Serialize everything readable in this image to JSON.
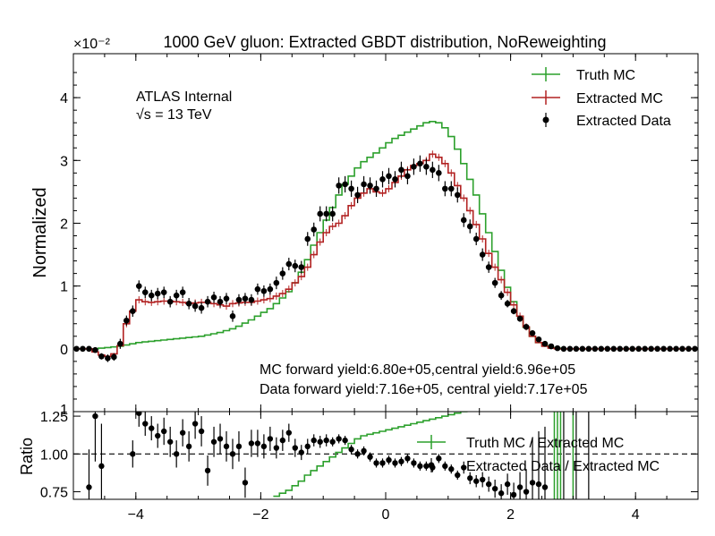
{
  "chart_data": {
    "type": "line",
    "title": "1000 GeV gluon: Extracted GBDT distribution, NoReweighting",
    "top_panel": {
      "ylabel": "Normalized",
      "scale_label": "×10⁻²",
      "ylim": [
        -1,
        4.7
      ],
      "y_ticks": [
        0,
        1,
        2,
        3,
        4
      ],
      "y_tick_labels": [
        "0",
        "1",
        "2",
        "3",
        "4"
      ],
      "bottom_clipped_label": "1",
      "annotations": {
        "experiment": "ATLAS Internal",
        "energy": "√s = 13 TeV",
        "mc_yield": "MC forward yield:6.80e+05,central yield:6.96e+05",
        "data_yield": "Data forward yield:7.16e+05, central yield:7.17e+05"
      },
      "legend": {
        "placement": "top-right",
        "entries": [
          "Truth MC",
          "Extracted MC",
          "Extracted Data"
        ]
      }
    },
    "bottom_panel": {
      "ylabel": "Ratio",
      "ylim": [
        0.7,
        1.28
      ],
      "y_ticks": [
        0.75,
        1.0,
        1.25
      ],
      "y_tick_labels": [
        "0.75",
        "1.00",
        "1.25"
      ],
      "legend": {
        "placement": "center-right",
        "entries": [
          "Truth MC / Extracted MC",
          "Extracted Data / Extracted MC"
        ]
      }
    },
    "x_axis": {
      "xlim": [
        -5,
        5
      ],
      "ticks": [
        -4,
        -2,
        0,
        2,
        4
      ],
      "tick_labels": [
        "−4",
        "−2",
        "0",
        "2",
        "4"
      ],
      "bin_width": 0.1
    },
    "x_bin_lo": [
      -5.0,
      -4.9,
      -4.8,
      -4.7,
      -4.6,
      -4.5,
      -4.4,
      -4.3,
      -4.2,
      -4.1,
      -4.0,
      -3.9,
      -3.8,
      -3.7,
      -3.6,
      -3.5,
      -3.4,
      -3.3,
      -3.2,
      -3.1,
      -3.0,
      -2.9,
      -2.8,
      -2.7,
      -2.6,
      -2.5,
      -2.4,
      -2.3,
      -2.2,
      -2.1,
      -2.0,
      -1.9,
      -1.8,
      -1.7,
      -1.6,
      -1.5,
      -1.4,
      -1.3,
      -1.2,
      -1.1,
      -1.0,
      -0.9,
      -0.8,
      -0.7,
      -0.6,
      -0.5,
      -0.4,
      -0.3,
      -0.2,
      -0.1,
      0.0,
      0.1,
      0.2,
      0.3,
      0.4,
      0.5,
      0.6,
      0.7,
      0.8,
      0.9,
      1.0,
      1.1,
      1.2,
      1.3,
      1.4,
      1.5,
      1.6,
      1.7,
      1.8,
      1.9,
      2.0,
      2.1,
      2.2,
      2.3,
      2.4,
      2.5,
      2.6,
      2.7,
      2.8,
      2.9,
      3.0,
      3.1,
      3.2,
      3.3,
      3.4,
      3.5,
      3.6,
      3.7,
      3.8,
      3.9,
      4.0,
      4.1,
      4.2,
      4.3,
      4.4,
      4.5,
      4.6,
      4.7,
      4.8,
      4.9
    ],
    "series": [
      {
        "name": "Truth MC",
        "color": "#2ca02c",
        "values": [
          0,
          0,
          0,
          0,
          0.01,
          0.02,
          0.03,
          0.04,
          0.06,
          0.08,
          0.1,
          0.11,
          0.12,
          0.13,
          0.14,
          0.15,
          0.16,
          0.17,
          0.18,
          0.19,
          0.2,
          0.22,
          0.24,
          0.26,
          0.29,
          0.32,
          0.36,
          0.41,
          0.46,
          0.52,
          0.58,
          0.64,
          0.72,
          0.81,
          0.91,
          1.05,
          1.22,
          1.42,
          1.65,
          1.85,
          2.05,
          2.25,
          2.45,
          2.62,
          2.75,
          2.88,
          2.98,
          3.05,
          3.12,
          3.2,
          3.28,
          3.35,
          3.4,
          3.45,
          3.5,
          3.55,
          3.6,
          3.62,
          3.6,
          3.52,
          3.38,
          3.18,
          2.95,
          2.7,
          2.45,
          2.15,
          1.85,
          1.55,
          1.25,
          0.98,
          0.75,
          0.52,
          0.34,
          0.2,
          0.1,
          0.05,
          0.02,
          0.01,
          0,
          0,
          0,
          0,
          0,
          0,
          0,
          0,
          0,
          0,
          0,
          0,
          0,
          0,
          0,
          0,
          0,
          0,
          0,
          0,
          0,
          0
        ]
      },
      {
        "name": "Extracted MC",
        "color": "#b22222",
        "values": [
          0,
          0,
          0,
          -0.05,
          -0.1,
          -0.12,
          -0.08,
          0.05,
          0.4,
          0.6,
          0.78,
          0.75,
          0.74,
          0.75,
          0.76,
          0.76,
          0.75,
          0.74,
          0.72,
          0.73,
          0.74,
          0.74,
          0.72,
          0.7,
          0.68,
          0.72,
          0.73,
          0.74,
          0.74,
          0.76,
          0.78,
          0.8,
          0.84,
          0.88,
          0.95,
          1.05,
          1.15,
          1.3,
          1.5,
          1.7,
          1.85,
          1.95,
          2.0,
          2.12,
          2.28,
          2.4,
          2.48,
          2.55,
          2.5,
          2.48,
          2.55,
          2.65,
          2.75,
          2.85,
          2.92,
          2.95,
          3.0,
          3.1,
          3.05,
          2.95,
          2.8,
          2.6,
          2.4,
          2.2,
          1.98,
          1.75,
          1.52,
          1.3,
          1.1,
          0.9,
          0.7,
          0.52,
          0.35,
          0.2,
          0.1,
          0.04,
          0.01,
          0,
          0,
          0,
          0,
          0,
          0,
          0,
          0,
          0,
          0,
          0,
          0,
          0,
          0,
          0,
          0,
          0,
          0,
          0,
          0,
          0,
          0,
          0
        ]
      },
      {
        "name": "Extracted Data",
        "color": "#000000",
        "values": [
          0,
          0,
          0,
          -0.02,
          -0.12,
          -0.15,
          -0.13,
          0.08,
          0.45,
          0.6,
          1.0,
          0.9,
          0.85,
          0.88,
          0.9,
          0.75,
          0.85,
          0.9,
          0.72,
          0.68,
          0.65,
          0.75,
          0.82,
          0.75,
          0.8,
          0.52,
          0.78,
          0.8,
          0.78,
          0.95,
          0.92,
          0.95,
          1.05,
          1.2,
          1.35,
          1.32,
          1.3,
          1.75,
          1.9,
          2.15,
          2.15,
          2.15,
          2.6,
          2.62,
          2.55,
          2.45,
          2.62,
          2.6,
          2.55,
          2.7,
          2.75,
          2.7,
          2.85,
          2.75,
          2.9,
          2.95,
          2.9,
          2.85,
          2.8,
          2.55,
          2.55,
          2.45,
          2.05,
          1.95,
          1.75,
          1.5,
          1.3,
          1.05,
          0.85,
          0.72,
          0.6,
          0.48,
          0.35,
          0.25,
          0.15,
          0.08,
          0.04,
          0.01,
          0,
          0,
          0,
          0,
          0,
          0,
          0,
          0,
          0,
          0,
          0,
          0,
          0,
          0,
          0,
          0,
          0,
          0,
          0,
          0,
          0,
          0
        ],
        "errors": [
          0,
          0,
          0,
          0.03,
          0.05,
          0.06,
          0.06,
          0.08,
          0.08,
          0.09,
          0.09,
          0.09,
          0.09,
          0.09,
          0.09,
          0.09,
          0.09,
          0.09,
          0.09,
          0.09,
          0.09,
          0.09,
          0.09,
          0.09,
          0.09,
          0.09,
          0.09,
          0.09,
          0.09,
          0.09,
          0.09,
          0.09,
          0.1,
          0.1,
          0.1,
          0.1,
          0.1,
          0.11,
          0.11,
          0.12,
          0.12,
          0.12,
          0.13,
          0.13,
          0.13,
          0.13,
          0.13,
          0.13,
          0.13,
          0.13,
          0.13,
          0.13,
          0.13,
          0.13,
          0.13,
          0.13,
          0.13,
          0.13,
          0.13,
          0.12,
          0.12,
          0.12,
          0.11,
          0.11,
          0.1,
          0.1,
          0.09,
          0.08,
          0.07,
          0.06,
          0.05,
          0.05,
          0.04,
          0.03,
          0.02,
          0.02,
          0.01,
          0.01,
          0,
          0,
          0,
          0,
          0,
          0,
          0,
          0,
          0,
          0,
          0,
          0,
          0,
          0,
          0,
          0,
          0,
          0,
          0,
          0,
          0,
          0
        ]
      }
    ],
    "ratio_series": [
      {
        "name": "Truth MC / Extracted MC",
        "color": "#2ca02c",
        "x_bin_lo": [
          -1.8,
          -1.7,
          -1.6,
          -1.5,
          -1.4,
          -1.3,
          -1.2,
          -1.1,
          -1.0,
          -0.9,
          -0.8,
          -0.7,
          -0.6,
          -0.5,
          -0.4,
          -0.3,
          -0.2,
          -0.1,
          0.0,
          0.1,
          0.2,
          0.3,
          0.4,
          0.5,
          0.6,
          0.7,
          0.8,
          0.9,
          1.0,
          1.1,
          1.2,
          1.3,
          1.4
        ],
        "values": [
          0.72,
          0.74,
          0.76,
          0.79,
          0.82,
          0.86,
          0.89,
          0.92,
          0.95,
          0.98,
          1.01,
          1.04,
          1.07,
          1.1,
          1.12,
          1.13,
          1.14,
          1.15,
          1.16,
          1.17,
          1.18,
          1.19,
          1.2,
          1.21,
          1.22,
          1.23,
          1.24,
          1.25,
          1.26,
          1.27,
          1.28,
          1.3,
          1.32
        ]
      },
      {
        "name": "Extracted Data / Extracted MC",
        "color": "#000000",
        "x": [
          -4.75,
          -4.65,
          -4.55,
          -4.05,
          -3.95,
          -3.85,
          -3.75,
          -3.65,
          -3.55,
          -3.45,
          -3.35,
          -3.25,
          -3.15,
          -3.05,
          -2.95,
          -2.85,
          -2.75,
          -2.65,
          -2.55,
          -2.45,
          -2.35,
          -2.25,
          -2.15,
          -2.05,
          -1.95,
          -1.85,
          -1.75,
          -1.65,
          -1.55,
          -1.45,
          -1.35,
          -1.25,
          -1.15,
          -1.05,
          -0.95,
          -0.85,
          -0.75,
          -0.65,
          -0.55,
          -0.45,
          -0.35,
          -0.25,
          -0.15,
          -0.05,
          0.05,
          0.15,
          0.25,
          0.35,
          0.45,
          0.55,
          0.65,
          0.75,
          0.85,
          0.95,
          1.05,
          1.15,
          1.25,
          1.35,
          1.45,
          1.55,
          1.65,
          1.75,
          1.85,
          1.95,
          2.05,
          2.15,
          2.25,
          2.35,
          2.45,
          2.55
        ],
        "values": [
          0.78,
          1.25,
          0.92,
          1.0,
          1.27,
          1.2,
          1.17,
          1.12,
          1.15,
          1.08,
          1.0,
          1.14,
          1.05,
          1.2,
          1.15,
          0.89,
          1.08,
          1.1,
          1.05,
          1.0,
          1.05,
          0.81,
          1.07,
          1.07,
          1.05,
          1.1,
          1.04,
          1.09,
          1.14,
          1.04,
          1.01,
          1.05,
          1.09,
          1.08,
          1.09,
          1.08,
          1.1,
          1.09,
          1.03,
          1.0,
          1.02,
          0.98,
          0.94,
          0.94,
          0.96,
          0.94,
          0.95,
          0.97,
          0.94,
          0.92,
          0.92,
          0.91,
          0.97,
          0.92,
          0.9,
          0.86,
          0.91,
          0.84,
          0.82,
          0.83,
          0.8,
          0.77,
          0.74,
          0.8,
          0.73,
          0.78,
          0.75,
          0.81,
          0.8,
          0.78
        ],
        "errors": [
          0.25,
          0.3,
          0.28,
          0.09,
          0.09,
          0.08,
          0.08,
          0.08,
          0.09,
          0.1,
          0.09,
          0.09,
          0.1,
          0.1,
          0.1,
          0.1,
          0.1,
          0.1,
          0.1,
          0.1,
          0.1,
          0.1,
          0.09,
          0.09,
          0.08,
          0.08,
          0.07,
          0.07,
          0.06,
          0.06,
          0.05,
          0.05,
          0.04,
          0.04,
          0.04,
          0.03,
          0.03,
          0.03,
          0.03,
          0.03,
          0.03,
          0.03,
          0.03,
          0.03,
          0.03,
          0.03,
          0.03,
          0.03,
          0.03,
          0.03,
          0.03,
          0.03,
          0.03,
          0.03,
          0.03,
          0.03,
          0.04,
          0.04,
          0.04,
          0.05,
          0.05,
          0.06,
          0.06,
          0.07,
          0.08,
          0.1,
          0.15,
          0.3,
          0.35,
          0.4
        ]
      }
    ]
  }
}
